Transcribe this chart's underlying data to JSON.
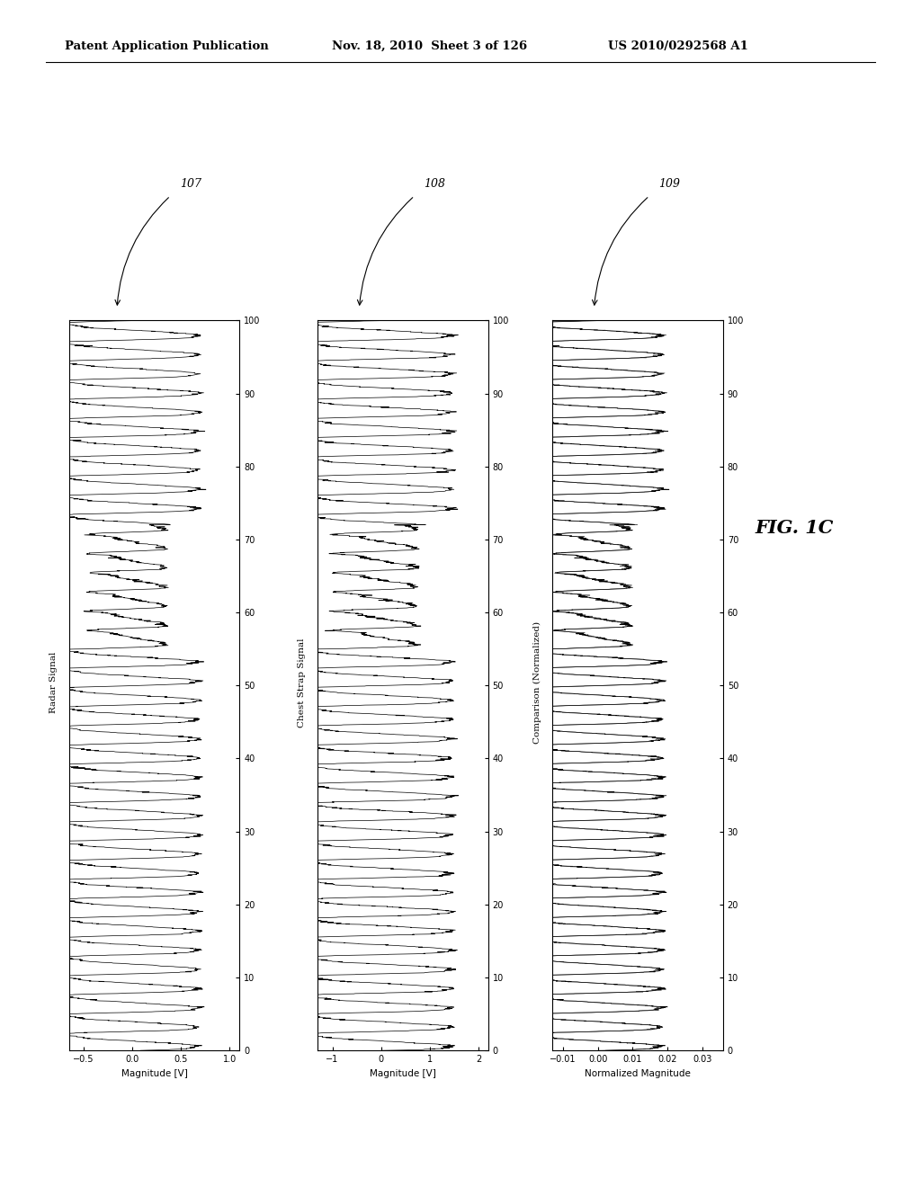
{
  "header_left": "Patent Application Publication",
  "header_middle": "Nov. 18, 2010  Sheet 3 of 126",
  "header_right": "US 2010/0292568 A1",
  "fig_label": "FIG. 1C",
  "panel_labels": [
    "107",
    "108",
    "109"
  ],
  "panel_titles": [
    "Radar Signal",
    "Chest Strap Signal",
    "Comparison (Normalized)"
  ],
  "ylabels": [
    "Magnitude [V]",
    "Magnitude [V]",
    "Normalized Magnitude"
  ],
  "yticks_1": [
    1,
    0.5,
    0,
    -0.5
  ],
  "yticks_2": [
    2,
    1,
    0,
    -1
  ],
  "yticks_3": [
    0.03,
    0.02,
    0.01,
    0,
    -0.01
  ],
  "xticks": [
    0,
    10,
    20,
    30,
    40,
    50,
    60,
    70,
    80,
    90,
    100
  ],
  "xlim": [
    0,
    100
  ],
  "background_color": "#ffffff",
  "line_color": "#000000",
  "signal1_amplitude": 0.7,
  "signal2_amplitude": 1.5,
  "signal3_amplitude": 0.022
}
